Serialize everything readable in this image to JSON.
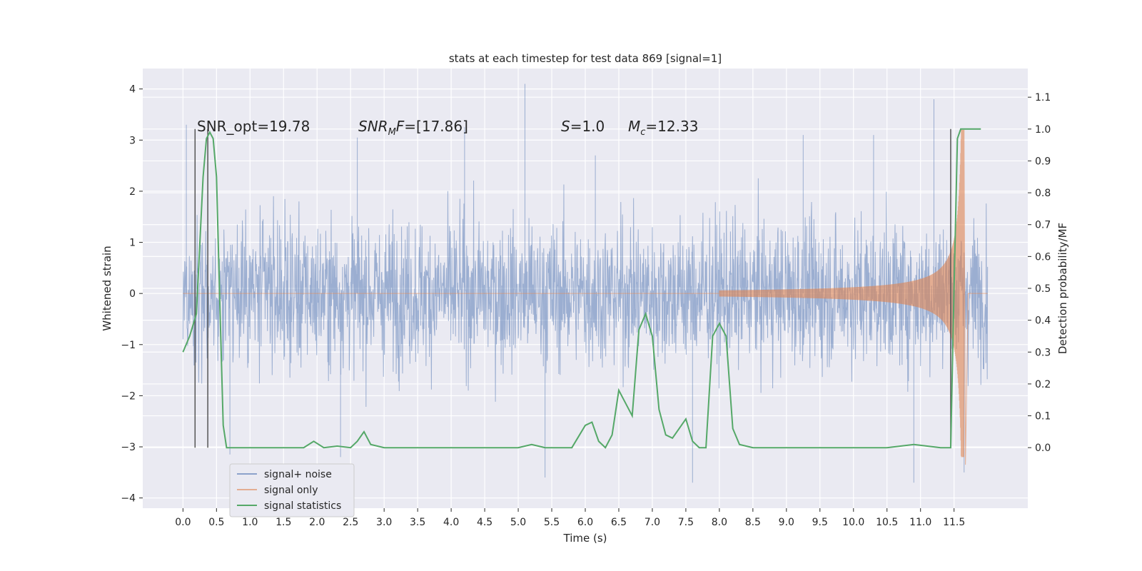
{
  "chart_data": {
    "type": "line",
    "title": "stats at each timestep for test data 869 [signal=1]",
    "xlabel": "Time (s)",
    "ylabel": "Whitened strain",
    "y2label": "Detection probability/MF",
    "xlim": [
      -0.6,
      12.6
    ],
    "ylim": [
      -4.2,
      4.4
    ],
    "y2lim": [
      -0.19,
      1.19
    ],
    "x_ticks": [
      "0.0",
      "0.5",
      "1.0",
      "1.5",
      "2.0",
      "2.5",
      "3.0",
      "3.5",
      "4.0",
      "4.5",
      "5.0",
      "5.5",
      "6.0",
      "6.5",
      "7.0",
      "7.5",
      "8.0",
      "8.5",
      "9.0",
      "9.5",
      "10.0",
      "10.5",
      "11.0",
      "11.5"
    ],
    "y_ticks": [
      "4",
      "3",
      "2",
      "1",
      "0",
      "−1",
      "−2",
      "−3",
      "−4"
    ],
    "y2_ticks": [
      "1.1",
      "1.0",
      "0.9",
      "0.8",
      "0.7",
      "0.6",
      "0.5",
      "0.4",
      "0.3",
      "0.2",
      "0.1",
      "0.0"
    ],
    "grid": true,
    "legend_position": "lower-left",
    "annotations": [
      {
        "plain": "SNR_opt=19.78",
        "x": 0.2,
        "y2": 0.99
      },
      {
        "italic": "SNR",
        "sub": "M",
        "rest_italic": "F",
        "tail": "=[17.86]",
        "x": 2.6,
        "y2": 0.99
      },
      {
        "italic": "S",
        "tail": "=1.0",
        "x": 5.6,
        "y2": 0.99
      },
      {
        "italic": "M",
        "sub": "c",
        "tail": "=12.33",
        "x": 6.6,
        "y2": 0.99
      }
    ],
    "series": [
      {
        "name": "signal+ noise",
        "color": "#4c72b0",
        "duration": [
          0.0,
          12.0
        ],
        "envelope_sigma": 1.1,
        "peaks": [
          {
            "x": 0.05,
            "y": 3.3
          },
          {
            "x": 0.7,
            "y": -3.15
          },
          {
            "x": 2.6,
            "y": 3.05
          },
          {
            "x": 2.35,
            "y": -3.2
          },
          {
            "x": 4.2,
            "y": 3.25
          },
          {
            "x": 5.1,
            "y": 4.1
          },
          {
            "x": 5.4,
            "y": -3.6
          },
          {
            "x": 6.15,
            "y": 2.7
          },
          {
            "x": 7.6,
            "y": -3.7
          },
          {
            "x": 9.25,
            "y": 3.1
          },
          {
            "x": 10.3,
            "y": 3.1
          },
          {
            "x": 10.9,
            "y": -3.7
          },
          {
            "x": 11.2,
            "y": 3.8
          },
          {
            "x": 11.65,
            "y": -3.5
          }
        ]
      },
      {
        "name": "signal only",
        "color": "#dd8452",
        "chirp_start": 8.0,
        "merger_time": 11.65,
        "merger_amplitude": [
          3.0,
          -3.35
        ],
        "end": 12.0
      },
      {
        "name": "signal statistics",
        "color": "#55a868",
        "x": [
          0.0,
          0.1,
          0.2,
          0.3,
          0.35,
          0.4,
          0.45,
          0.5,
          0.55,
          0.6,
          0.65,
          0.7,
          1.0,
          1.5,
          1.8,
          1.95,
          2.1,
          2.3,
          2.5,
          2.6,
          2.7,
          2.8,
          3.0,
          4.0,
          5.0,
          5.2,
          5.4,
          5.8,
          6.0,
          6.1,
          6.2,
          6.3,
          6.4,
          6.5,
          6.6,
          6.7,
          6.8,
          6.9,
          7.0,
          7.1,
          7.2,
          7.3,
          7.4,
          7.5,
          7.6,
          7.7,
          7.8,
          7.9,
          8.0,
          8.1,
          8.2,
          8.3,
          8.5,
          9.5,
          10.5,
          10.9,
          11.3,
          11.45,
          11.5,
          11.55,
          11.6,
          11.65,
          11.9
        ],
        "values": [
          0.3,
          0.35,
          0.42,
          0.85,
          0.97,
          0.99,
          0.97,
          0.85,
          0.45,
          0.07,
          0.0,
          0.0,
          0.0,
          0.0,
          0.0,
          0.02,
          0.0,
          0.005,
          0.0,
          0.02,
          0.05,
          0.01,
          0.0,
          0.0,
          0.0,
          0.01,
          0.0,
          0.0,
          0.07,
          0.08,
          0.02,
          0.0,
          0.04,
          0.18,
          0.14,
          0.1,
          0.37,
          0.42,
          0.35,
          0.12,
          0.04,
          0.03,
          0.06,
          0.09,
          0.02,
          0.0,
          0.0,
          0.35,
          0.39,
          0.35,
          0.06,
          0.01,
          0.0,
          0.0,
          0.0,
          0.01,
          0.0,
          0.0,
          0.5,
          0.97,
          1.0,
          1.0,
          1.0
        ]
      }
    ],
    "vertical_markers": [
      {
        "x": 0.18,
        "y2": [
          0.0,
          1.0
        ]
      },
      {
        "x": 0.37,
        "y2": [
          0.0,
          1.0
        ]
      },
      {
        "x": 11.45,
        "y2": [
          0.0,
          1.0
        ]
      }
    ]
  }
}
